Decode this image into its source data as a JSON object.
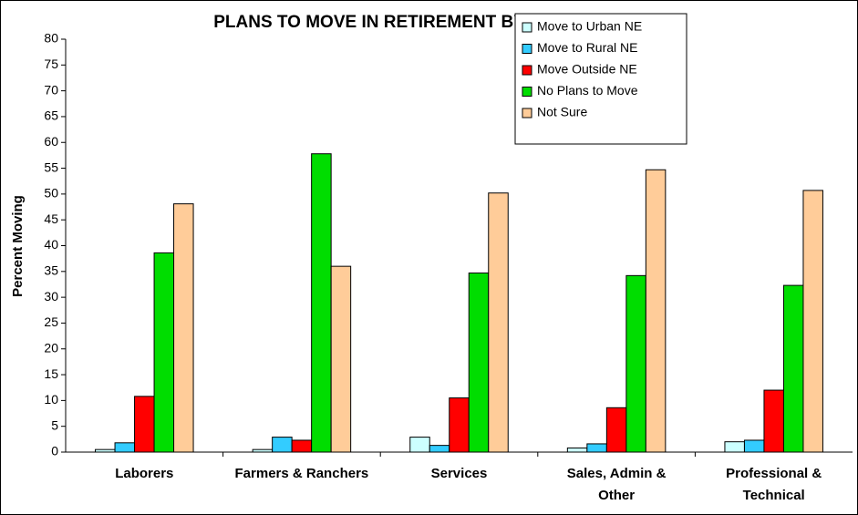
{
  "chart_data": {
    "type": "bar",
    "title": "PLANS TO MOVE IN RETIREMENT BY OCCUPATION",
    "y_label": "Percent Moving",
    "categories": [
      "Laborers",
      "Farmers & Ranchers",
      "Services",
      "Sales, Admin & Other",
      "Professional & Technical"
    ],
    "series": [
      {
        "name": "Move to Urban NE",
        "color": "#ccffff",
        "values": [
          0.5,
          0.5,
          2.9,
          0.8,
          2.0
        ]
      },
      {
        "name": "Move to Rural NE",
        "color": "#33ccff",
        "values": [
          1.8,
          2.9,
          1.3,
          1.6,
          2.3
        ]
      },
      {
        "name": "Move Outside NE",
        "color": "#ff0000",
        "values": [
          10.8,
          2.3,
          10.5,
          8.6,
          12.0
        ]
      },
      {
        "name": "No Plans to Move",
        "color": "#00dd00",
        "values": [
          38.6,
          57.8,
          34.7,
          34.2,
          32.3
        ]
      },
      {
        "name": "Not Sure",
        "color": "#ffcc99",
        "values": [
          48.1,
          36.0,
          50.2,
          54.7,
          50.7
        ]
      }
    ],
    "ylim": [
      0,
      80
    ],
    "yticks": [
      0,
      5,
      10,
      15,
      20,
      25,
      30,
      35,
      40,
      45,
      50,
      55,
      60,
      65,
      70,
      75,
      80
    ],
    "grid": false,
    "legend": "top-right"
  }
}
